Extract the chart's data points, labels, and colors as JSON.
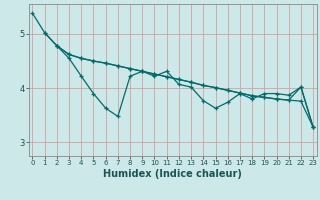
{
  "xlabel": "Humidex (Indice chaleur)",
  "bg_color": "#cce8e8",
  "plot_bg_color": "#cce8e8",
  "grid_color": "#d4a0a0",
  "line_color": "#006b6b",
  "spine_color": "#888888",
  "xlim": [
    -0.3,
    23.3
  ],
  "ylim": [
    2.75,
    5.55
  ],
  "yticks": [
    3,
    4,
    5
  ],
  "xticks": [
    0,
    1,
    2,
    3,
    4,
    5,
    6,
    7,
    8,
    9,
    10,
    11,
    12,
    13,
    14,
    15,
    16,
    17,
    18,
    19,
    20,
    21,
    22,
    23
  ],
  "line1": {
    "x": [
      0,
      1,
      2,
      3,
      4,
      5,
      6,
      7,
      8,
      9,
      10,
      11,
      12,
      13,
      14,
      15,
      16,
      17,
      18,
      19,
      20,
      21,
      22,
      23
    ],
    "y": [
      5.38,
      5.02,
      4.78,
      4.62,
      4.55,
      4.5,
      4.46,
      4.41,
      4.36,
      4.31,
      4.26,
      4.21,
      4.16,
      4.11,
      4.05,
      4.01,
      3.96,
      3.91,
      3.86,
      3.83,
      3.8,
      3.78,
      3.76,
      3.28
    ]
  },
  "line2": {
    "x": [
      1,
      2,
      3,
      4,
      5,
      6,
      7,
      8,
      9,
      10,
      11,
      12,
      13,
      14,
      15,
      16,
      17,
      18,
      19,
      20,
      21,
      22,
      23
    ],
    "y": [
      5.02,
      4.78,
      4.62,
      4.55,
      4.5,
      4.46,
      4.41,
      4.36,
      4.31,
      4.26,
      4.21,
      4.16,
      4.11,
      4.05,
      4.01,
      3.96,
      3.91,
      3.86,
      3.83,
      3.8,
      3.78,
      4.02,
      3.28
    ]
  },
  "line3": {
    "x": [
      2,
      3,
      4,
      5,
      6,
      7,
      8,
      9,
      10,
      11,
      12,
      13,
      14,
      15,
      16,
      17,
      18,
      19,
      20,
      21,
      22,
      23
    ],
    "y": [
      4.78,
      4.55,
      4.22,
      3.9,
      3.63,
      3.48,
      4.22,
      4.31,
      4.22,
      4.31,
      4.07,
      4.02,
      3.77,
      3.63,
      3.74,
      3.9,
      3.8,
      3.9,
      3.9,
      3.87,
      4.02,
      3.28
    ]
  },
  "xlabel_fontsize": 7,
  "xlabel_fontweight": "bold",
  "tick_labelsize": 5.5,
  "marker_size": 3.5,
  "line_width": 0.9
}
